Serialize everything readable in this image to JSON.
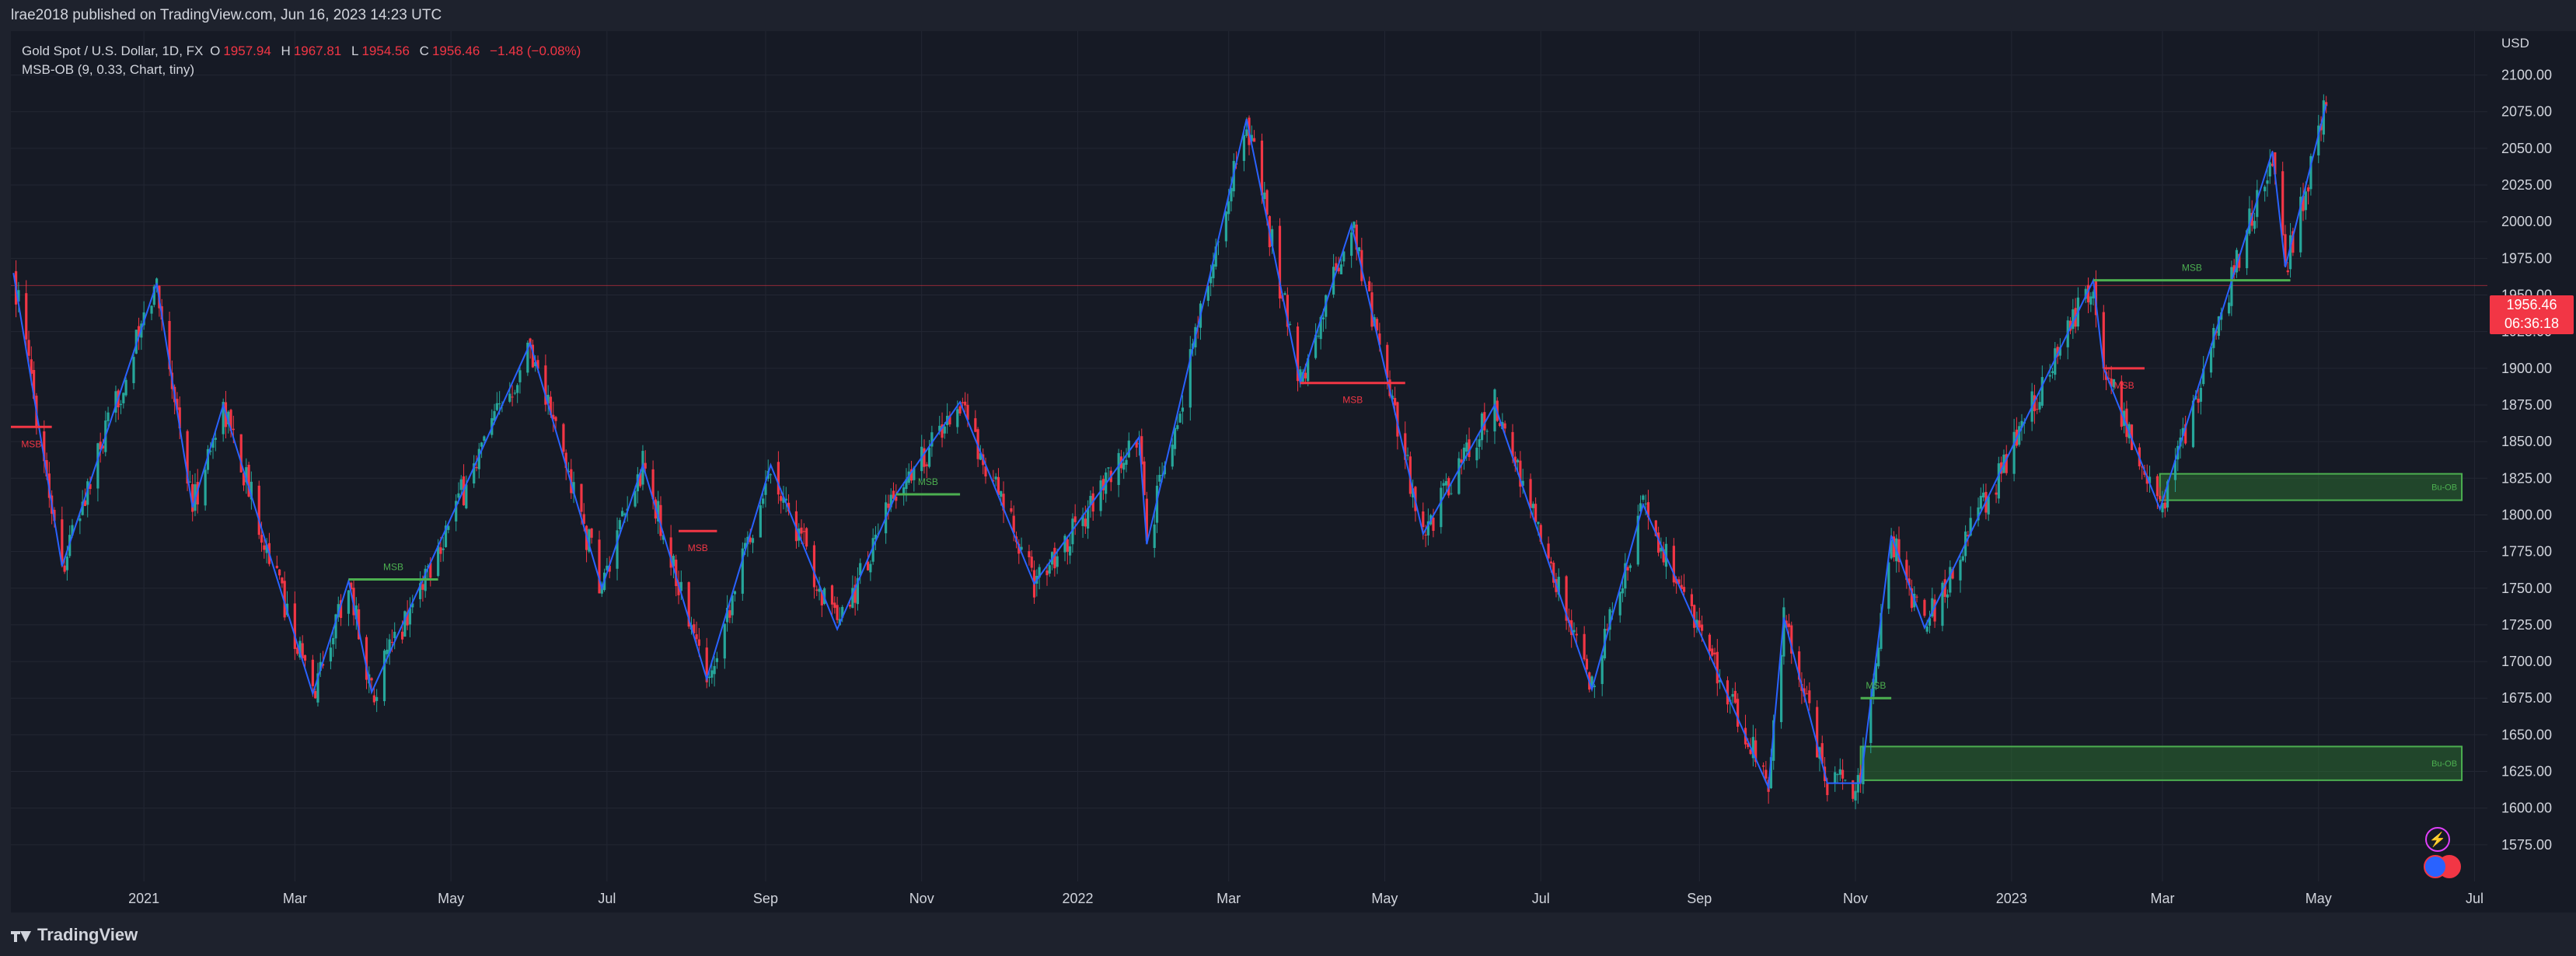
{
  "header": {
    "published_text": "lrae2018 published on TradingView.com, Jun 16, 2023 14:23 UTC"
  },
  "legend": {
    "symbol": "Gold Spot / U.S. Dollar, 1D, FX",
    "open_label": "O",
    "open_value": "1957.94",
    "high_label": "H",
    "high_value": "1967.81",
    "low_label": "L",
    "low_value": "1954.56",
    "close_label": "C",
    "close_value": "1956.46",
    "change": "−1.48 (−0.08%)",
    "indicator": "MSB-OB (9, 0.33, Chart, tiny)"
  },
  "price_axis": {
    "currency": "USD",
    "last_price": "1956.46",
    "countdown": "06:36:18"
  },
  "footer": {
    "brand": "TradingView"
  },
  "colors": {
    "up": "#26a69a",
    "down": "#f23645",
    "zigzag": "#2962ff",
    "msb_bull": "#4caf50",
    "msb_bear": "#f23645",
    "ob_fill": "#2e7d32",
    "background": "#161a25"
  },
  "chart_data": {
    "type": "candlestick",
    "symbol": "XAUUSD",
    "timeframe": "1D",
    "ylim": [
      1550,
      2130
    ],
    "yticks": [
      1575,
      1600,
      1625,
      1650,
      1675,
      1700,
      1725,
      1750,
      1775,
      1800,
      1825,
      1850,
      1875,
      1900,
      1925,
      1950,
      1975,
      2000,
      2025,
      2050,
      2075,
      2100
    ],
    "xticks": [
      "2021",
      "Mar",
      "May",
      "Jul",
      "Sep",
      "Nov",
      "2022",
      "Mar",
      "May",
      "Jul",
      "Sep",
      "Nov",
      "2023",
      "Mar",
      "May",
      "Jul"
    ],
    "xtick_dates": [
      "2021-01-01",
      "2021-03-01",
      "2021-05-01",
      "2021-07-01",
      "2021-09-01",
      "2021-11-01",
      "2022-01-01",
      "2022-03-01",
      "2022-05-01",
      "2022-07-01",
      "2022-09-01",
      "2022-11-01",
      "2023-01-01",
      "2023-03-01",
      "2023-05-01",
      "2023-07-01"
    ],
    "x_range": [
      "2020-11-10",
      "2023-07-06"
    ],
    "last_price": 1956.46,
    "zigzag": [
      {
        "date": "2020-11-11",
        "price": 1965
      },
      {
        "date": "2020-11-30",
        "price": 1765
      },
      {
        "date": "2021-01-06",
        "price": 1958
      },
      {
        "date": "2021-01-20",
        "price": 1805
      },
      {
        "date": "2021-02-01",
        "price": 1875
      },
      {
        "date": "2021-03-08",
        "price": 1678
      },
      {
        "date": "2021-03-22",
        "price": 1755
      },
      {
        "date": "2021-03-31",
        "price": 1679
      },
      {
        "date": "2021-06-01",
        "price": 1917
      },
      {
        "date": "2021-06-29",
        "price": 1750
      },
      {
        "date": "2021-07-15",
        "price": 1834
      },
      {
        "date": "2021-08-09",
        "price": 1688
      },
      {
        "date": "2021-09-03",
        "price": 1834
      },
      {
        "date": "2021-09-29",
        "price": 1722
      },
      {
        "date": "2021-10-22",
        "price": 1814
      },
      {
        "date": "2021-11-16",
        "price": 1877
      },
      {
        "date": "2021-12-15",
        "price": 1753
      },
      {
        "date": "2022-01-25",
        "price": 1853
      },
      {
        "date": "2022-01-28",
        "price": 1780
      },
      {
        "date": "2022-03-08",
        "price": 2070
      },
      {
        "date": "2022-03-29",
        "price": 1890
      },
      {
        "date": "2022-04-18",
        "price": 1998
      },
      {
        "date": "2022-05-16",
        "price": 1787
      },
      {
        "date": "2022-06-13",
        "price": 1875
      },
      {
        "date": "2022-07-21",
        "price": 1681
      },
      {
        "date": "2022-08-10",
        "price": 1807
      },
      {
        "date": "2022-09-28",
        "price": 1614
      },
      {
        "date": "2022-10-04",
        "price": 1730
      },
      {
        "date": "2022-10-21",
        "price": 1617
      },
      {
        "date": "2022-11-03",
        "price": 1617
      },
      {
        "date": "2022-11-15",
        "price": 1786
      },
      {
        "date": "2022-11-28",
        "price": 1723
      },
      {
        "date": "2023-02-02",
        "price": 1960
      },
      {
        "date": "2023-02-06",
        "price": 1900
      },
      {
        "date": "2023-02-28",
        "price": 1804
      },
      {
        "date": "2023-04-13",
        "price": 2048
      },
      {
        "date": "2023-04-18",
        "price": 1969
      },
      {
        "date": "2023-05-04",
        "price": 2080
      }
    ],
    "msb_lines": [
      {
        "start": "2020-11-10",
        "end": "2020-11-26",
        "price": 1860,
        "direction": "bear",
        "label": "MSB"
      },
      {
        "start": "2021-03-22",
        "end": "2021-04-26",
        "price": 1756,
        "direction": "bull",
        "label": "MSB"
      },
      {
        "start": "2021-07-29",
        "end": "2021-08-13",
        "price": 1789,
        "direction": "bear",
        "label": "MSB"
      },
      {
        "start": "2021-10-22",
        "end": "2021-11-16",
        "price": 1814,
        "direction": "bull",
        "label": "MSB"
      },
      {
        "start": "2022-03-29",
        "end": "2022-05-09",
        "price": 1890,
        "direction": "bear",
        "label": "MSB"
      },
      {
        "start": "2022-11-03",
        "end": "2022-11-15",
        "price": 1675,
        "direction": "bull",
        "label": "MSB"
      },
      {
        "start": "2023-02-06",
        "end": "2023-02-22",
        "price": 1900,
        "direction": "bear",
        "label": "MSB"
      },
      {
        "start": "2023-02-02",
        "end": "2023-04-20",
        "price": 1960,
        "direction": "bull",
        "label": "MSB"
      }
    ],
    "order_blocks": [
      {
        "start": "2022-11-03",
        "end": "2023-06-26",
        "top": 1642,
        "bottom": 1619,
        "label": "Bu-OB"
      },
      {
        "start": "2023-02-28",
        "end": "2023-06-26",
        "top": 1828,
        "bottom": 1810,
        "label": "Bu-OB"
      }
    ]
  }
}
